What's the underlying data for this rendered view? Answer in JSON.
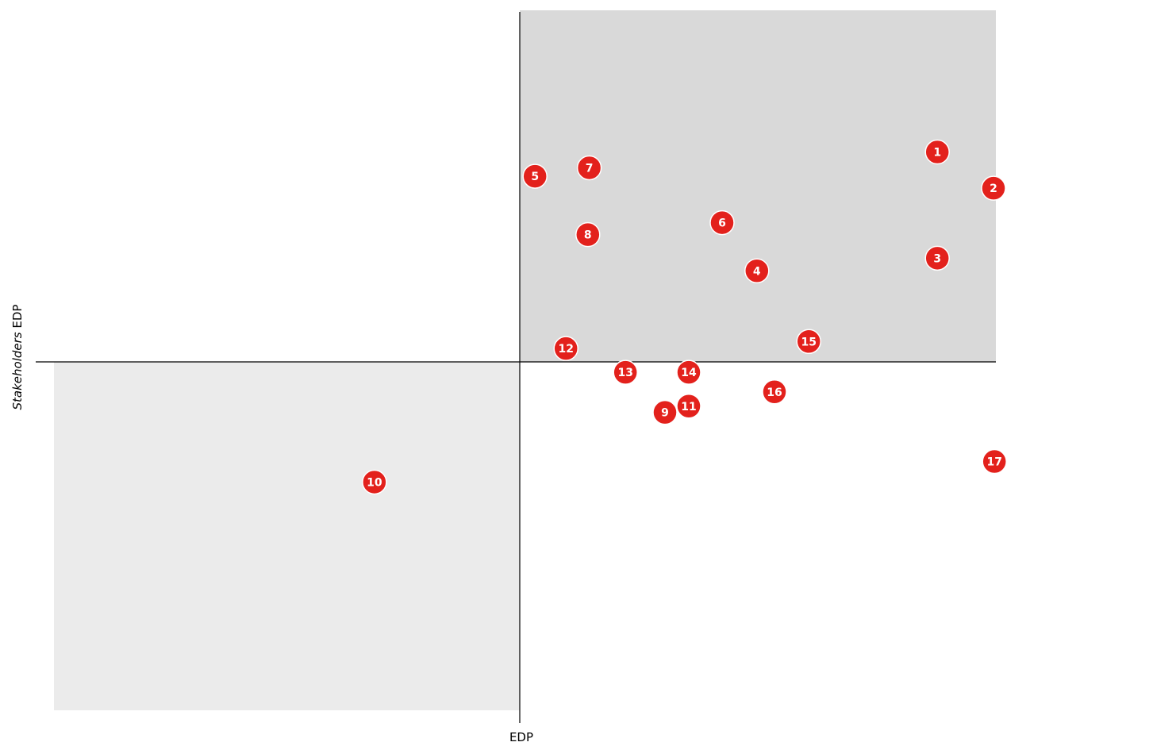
{
  "chart_data": {
    "type": "scatter",
    "title": "",
    "xlabel": "EDP",
    "ylabel_italic": "Stakeholders",
    "ylabel_rest": " EDP",
    "xlim": [
      -1,
      1
    ],
    "ylim": [
      -1,
      1
    ],
    "grid": false,
    "colors": {
      "marker": "#e3211c",
      "marker_text": "#ffffff",
      "top_right_quadrant": "#d9d9d9",
      "bottom_left_quadrant": "#ebebeb",
      "axis": "#000000"
    },
    "points": [
      {
        "label": "1",
        "x": 0.877,
        "y": 0.597
      },
      {
        "label": "2",
        "x": 0.995,
        "y": 0.494
      },
      {
        "label": "3",
        "x": 0.877,
        "y": 0.295
      },
      {
        "label": "4",
        "x": 0.498,
        "y": 0.259
      },
      {
        "label": "5",
        "x": 0.032,
        "y": 0.528
      },
      {
        "label": "6",
        "x": 0.425,
        "y": 0.396
      },
      {
        "label": "7",
        "x": 0.146,
        "y": 0.552
      },
      {
        "label": "8",
        "x": 0.143,
        "y": 0.362
      },
      {
        "label": "9",
        "x": 0.305,
        "y": -0.145
      },
      {
        "label": "10",
        "x": -0.312,
        "y": -0.345
      },
      {
        "label": "11",
        "x": 0.355,
        "y": -0.127
      },
      {
        "label": "12",
        "x": 0.097,
        "y": 0.038
      },
      {
        "label": "13",
        "x": 0.222,
        "y": -0.03
      },
      {
        "label": "14",
        "x": 0.355,
        "y": -0.03
      },
      {
        "label": "15",
        "x": 0.607,
        "y": 0.058
      },
      {
        "label": "16",
        "x": 0.535,
        "y": -0.086
      },
      {
        "label": "17",
        "x": 0.997,
        "y": -0.286
      }
    ]
  }
}
